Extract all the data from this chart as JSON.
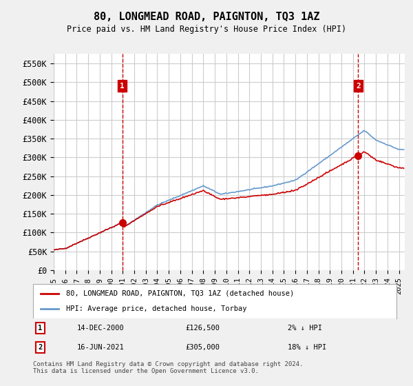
{
  "title": "80, LONGMEAD ROAD, PAIGNTON, TQ3 1AZ",
  "subtitle": "Price paid vs. HM Land Registry's House Price Index (HPI)",
  "ylabel_ticks": [
    0,
    50000,
    100000,
    150000,
    200000,
    250000,
    300000,
    350000,
    400000,
    450000,
    500000,
    550000
  ],
  "ylabel_labels": [
    "£0",
    "£50K",
    "£100K",
    "£150K",
    "£200K",
    "£250K",
    "£300K",
    "£350K",
    "£400K",
    "£450K",
    "£500K",
    "£550K"
  ],
  "ylim": [
    0,
    575000
  ],
  "xlim_min": 1995.0,
  "xlim_max": 2025.5,
  "background_color": "#f0f0f0",
  "plot_bg_color": "#ffffff",
  "grid_color": "#cccccc",
  "red_line_color": "#cc0000",
  "blue_line_color": "#6699cc",
  "transaction1": {
    "year": 2000.96,
    "price": 126500,
    "label": "1",
    "date": "14-DEC-2000",
    "amount": "£126,500",
    "info": "2% ↓ HPI"
  },
  "transaction2": {
    "year": 2021.46,
    "price": 305000,
    "label": "2",
    "date": "16-JUN-2021",
    "amount": "£305,000",
    "info": "18% ↓ HPI"
  },
  "legend_line1": "80, LONGMEAD ROAD, PAIGNTON, TQ3 1AZ (detached house)",
  "legend_line2": "HPI: Average price, detached house, Torbay",
  "footnote": "Contains HM Land Registry data © Crown copyright and database right 2024.\nThis data is licensed under the Open Government Licence v3.0."
}
